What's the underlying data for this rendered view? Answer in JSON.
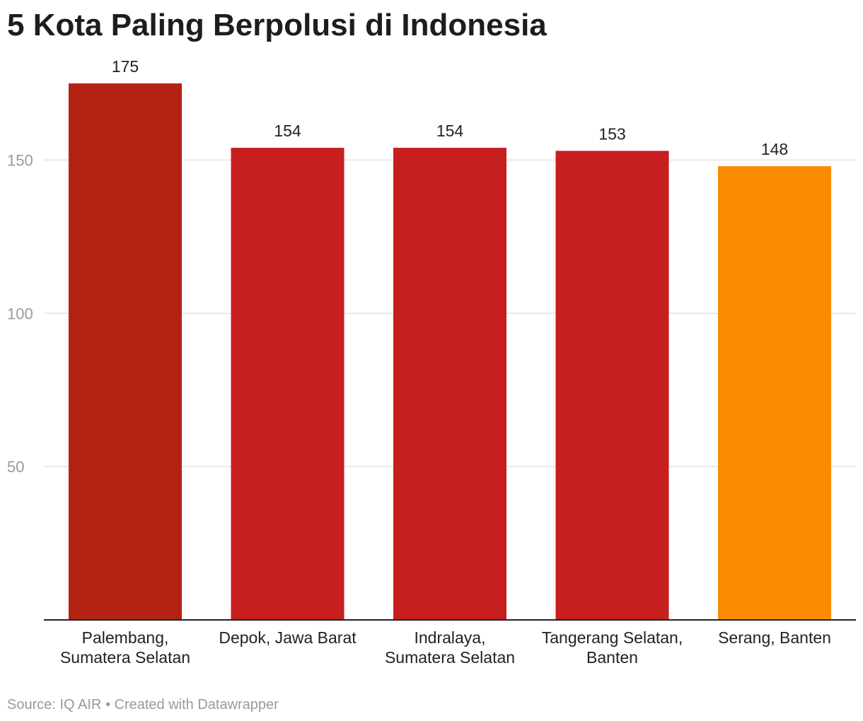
{
  "chart_data": {
    "type": "bar",
    "title": "5 Kota Paling Berpolusi di Indonesia",
    "categories": [
      [
        "Palembang,",
        "Sumatera Selatan"
      ],
      [
        "Depok, Jawa Barat"
      ],
      [
        "Indralaya,",
        "Sumatera Selatan"
      ],
      [
        "Tangerang Selatan,",
        "Banten"
      ],
      [
        "Serang, Banten"
      ]
    ],
    "values": [
      175,
      154,
      154,
      153,
      148
    ],
    "value_labels": [
      "175",
      "154",
      "154",
      "153",
      "148"
    ],
    "bar_colors": [
      "#b32213",
      "#c71e1e",
      "#c71e1e",
      "#c71e1e",
      "#f98c00"
    ],
    "yticks": [
      50,
      100,
      150
    ],
    "ytick_labels": [
      "50",
      "100",
      "150"
    ],
    "ylim": [
      0,
      175
    ],
    "grid": true,
    "xlabel": "",
    "ylabel": "",
    "source": "Source: IQ AIR • Created with Datawrapper"
  }
}
